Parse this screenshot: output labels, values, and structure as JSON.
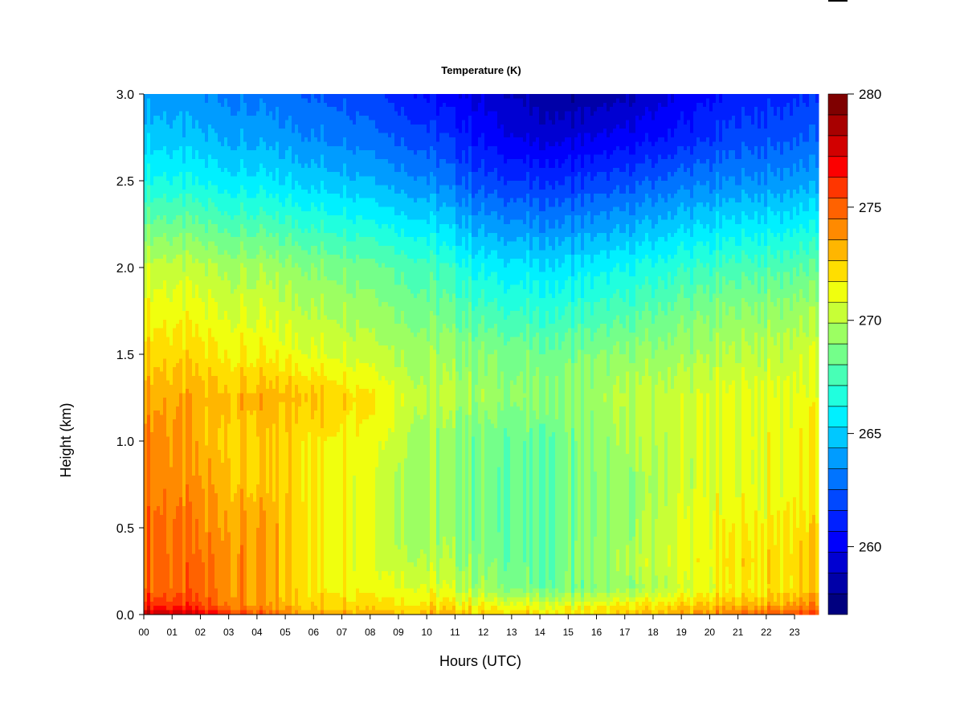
{
  "chart_data": {
    "type": "heatmap",
    "title": "Temperature (K)",
    "xlabel": "Hours (UTC)",
    "ylabel": "Height (km)",
    "x_ticks": [
      "00",
      "01",
      "02",
      "03",
      "04",
      "05",
      "06",
      "07",
      "08",
      "09",
      "10",
      "11",
      "12",
      "13",
      "14",
      "15",
      "16",
      "17",
      "18",
      "19",
      "20",
      "21",
      "22",
      "23"
    ],
    "xlim": [
      0,
      23.85
    ],
    "y_ticks": [
      0.0,
      0.5,
      1.0,
      1.5,
      2.0,
      2.5,
      3.0
    ],
    "y_tick_labels": [
      "0.0",
      "0.5",
      "1.0",
      "1.5",
      "2.0",
      "2.5",
      "3.0"
    ],
    "ylim": [
      0,
      3.0
    ],
    "colorbar": {
      "ticks": [
        260,
        265,
        270,
        275,
        280
      ],
      "tick_labels": [
        "260",
        "265",
        "270",
        "275",
        "280"
      ],
      "range": [
        257,
        280
      ],
      "colors": [
        "#00007f",
        "#0000a8",
        "#0000d2",
        "#0000fc",
        "#0020ff",
        "#0048ff",
        "#0074ff",
        "#009cff",
        "#00c8ff",
        "#00f0ff",
        "#20ffde",
        "#48ffb6",
        "#74ff8a",
        "#9cff62",
        "#c8ff36",
        "#f0ff0e",
        "#ffde00",
        "#ffb600",
        "#ff8a00",
        "#ff6200",
        "#ff3600",
        "#fc0000",
        "#d20000",
        "#a80000",
        "#7f0000"
      ]
    },
    "temperature_field": {
      "units": "K",
      "heights_km": [
        0.0,
        0.05,
        0.15,
        0.3,
        0.5,
        0.75,
        1.0,
        1.25,
        1.5,
        1.75,
        2.0,
        2.25,
        2.5,
        2.75,
        3.0
      ],
      "hours": [
        0,
        2,
        4,
        6,
        8,
        10,
        12,
        13.5,
        15,
        17,
        19,
        21,
        23.85
      ],
      "values": [
        [
          278.5,
          277.5,
          275.0,
          273.5,
          273.5,
          273.0,
          272.5,
          272.0,
          272.0,
          272.5,
          273.5,
          274.5,
          276.0
        ],
        [
          276.5,
          275.5,
          273.5,
          272.5,
          272.5,
          272.0,
          271.5,
          271.0,
          271.0,
          271.5,
          272.5,
          273.0,
          274.0
        ],
        [
          275.0,
          274.5,
          273.5,
          272.0,
          271.5,
          271.0,
          269.5,
          268.5,
          268.5,
          269.0,
          270.5,
          271.5,
          272.5
        ],
        [
          275.0,
          274.5,
          273.5,
          272.0,
          271.0,
          270.0,
          269.0,
          268.0,
          268.5,
          269.5,
          271.0,
          272.0,
          272.5
        ],
        [
          275.0,
          274.0,
          273.5,
          272.0,
          271.0,
          269.5,
          268.5,
          268.0,
          268.5,
          269.0,
          271.0,
          271.5,
          272.0
        ],
        [
          274.5,
          273.5,
          272.5,
          272.0,
          271.0,
          269.5,
          268.5,
          268.0,
          268.5,
          269.0,
          270.5,
          271.0,
          271.5
        ],
        [
          274.5,
          273.0,
          272.5,
          272.0,
          271.5,
          269.5,
          268.5,
          268.0,
          268.5,
          269.5,
          270.5,
          271.0,
          271.5
        ],
        [
          273.5,
          273.0,
          273.0,
          273.0,
          272.0,
          270.0,
          269.5,
          269.0,
          269.0,
          270.0,
          270.5,
          271.0,
          271.0
        ],
        [
          272.5,
          272.0,
          271.5,
          271.0,
          270.5,
          269.5,
          269.0,
          268.5,
          268.5,
          269.0,
          269.5,
          270.0,
          270.5
        ],
        [
          271.5,
          271.0,
          270.5,
          270.0,
          269.5,
          268.5,
          267.5,
          267.0,
          267.0,
          267.5,
          268.5,
          269.0,
          269.5
        ],
        [
          270.5,
          270.0,
          269.5,
          269.0,
          268.5,
          267.5,
          266.0,
          265.5,
          265.5,
          266.0,
          267.0,
          267.5,
          268.0
        ],
        [
          268.5,
          268.0,
          267.5,
          267.0,
          266.5,
          265.5,
          264.0,
          263.5,
          263.5,
          264.0,
          265.0,
          265.5,
          266.0
        ],
        [
          266.5,
          266.0,
          265.5,
          265.0,
          264.5,
          263.5,
          262.0,
          261.5,
          261.5,
          262.0,
          263.0,
          263.5,
          264.0
        ],
        [
          265.0,
          264.5,
          264.0,
          263.5,
          263.0,
          262.0,
          260.5,
          259.5,
          259.5,
          260.0,
          261.0,
          262.0,
          262.5
        ],
        [
          264.0,
          263.5,
          263.0,
          262.5,
          262.0,
          260.5,
          259.5,
          258.5,
          258.0,
          258.5,
          260.0,
          261.0,
          261.5
        ]
      ]
    }
  }
}
